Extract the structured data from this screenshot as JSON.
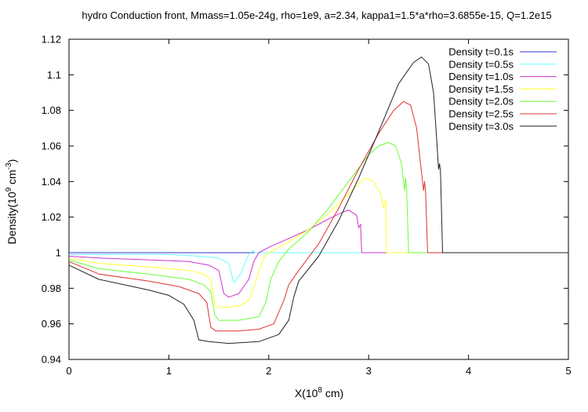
{
  "chart_data": {
    "type": "line",
    "title": "hydro Conduction front, Mmass=1.05e-24g, rho=1e9, a=2.34, kappa1=1.5*a*rho=3.6855e-15, Q=1.2e15",
    "xlabel_main": "X(10",
    "xlabel_sup": "8",
    "xlabel_tail": " cm)",
    "ylabel_main": "Density(10",
    "ylabel_sup1": "9",
    "ylabel_mid": " cm",
    "ylabel_sup2": "-3",
    "ylabel_tail": ")",
    "xlim": [
      0,
      5
    ],
    "ylim": [
      0.94,
      1.12
    ],
    "xticks": [
      0,
      1,
      2,
      3,
      4,
      5
    ],
    "xtick_labels": [
      "0",
      "1",
      "2",
      "3",
      "4",
      "5"
    ],
    "yticks": [
      0.94,
      0.96,
      0.98,
      1.0,
      1.02,
      1.04,
      1.06,
      1.08,
      1.1,
      1.12
    ],
    "ytick_labels": [
      "0.94",
      "0.96",
      "0.98",
      "1",
      "1.02",
      "1.04",
      "1.06",
      "1.08",
      "1.1",
      "1.12"
    ],
    "grid": false,
    "legend_position": "top-right",
    "series": [
      {
        "name": "Density t=0.1s",
        "color": "#3333cc",
        "points": [
          [
            0,
            1.0
          ],
          [
            5,
            1.0
          ]
        ]
      },
      {
        "name": "Density t=0.5s",
        "color": "#66ffff",
        "points": [
          [
            0,
            0.999
          ],
          [
            0.2,
            0.999
          ],
          [
            1.0,
            0.999
          ],
          [
            1.3,
            0.998
          ],
          [
            1.5,
            0.997
          ],
          [
            1.6,
            0.994
          ],
          [
            1.65,
            0.983
          ],
          [
            1.72,
            0.988
          ],
          [
            1.76,
            0.994
          ],
          [
            1.8,
            0.999
          ],
          [
            1.84,
            1.001
          ],
          [
            1.86,
            1.0
          ],
          [
            1.9,
            1.0
          ],
          [
            5,
            1.0
          ]
        ]
      },
      {
        "name": "Density t=1.0s",
        "color": "#cc33cc",
        "points": [
          [
            0,
            0.998
          ],
          [
            0.3,
            0.997
          ],
          [
            0.8,
            0.996
          ],
          [
            1.2,
            0.995
          ],
          [
            1.4,
            0.993
          ],
          [
            1.5,
            0.99
          ],
          [
            1.55,
            0.977
          ],
          [
            1.6,
            0.975
          ],
          [
            1.7,
            0.977
          ],
          [
            1.8,
            0.985
          ],
          [
            1.85,
            0.995
          ],
          [
            1.9,
            1.0
          ],
          [
            2.0,
            1.003
          ],
          [
            2.2,
            1.008
          ],
          [
            2.4,
            1.013
          ],
          [
            2.6,
            1.019
          ],
          [
            2.75,
            1.023
          ],
          [
            2.8,
            1.024
          ],
          [
            2.88,
            1.021
          ],
          [
            2.9,
            1.014
          ],
          [
            2.92,
            1.016
          ],
          [
            2.93,
            1.0
          ],
          [
            5,
            1.0
          ]
        ]
      },
      {
        "name": "Density t=1.5s",
        "color": "#ffff33",
        "points": [
          [
            0,
            0.997
          ],
          [
            0.3,
            0.994
          ],
          [
            0.8,
            0.992
          ],
          [
            1.2,
            0.99
          ],
          [
            1.35,
            0.988
          ],
          [
            1.42,
            0.985
          ],
          [
            1.46,
            0.971
          ],
          [
            1.5,
            0.969
          ],
          [
            1.7,
            0.97
          ],
          [
            1.8,
            0.973
          ],
          [
            1.85,
            0.98
          ],
          [
            1.9,
            0.99
          ],
          [
            1.95,
            0.997
          ],
          [
            2.0,
            1.0
          ],
          [
            2.2,
            1.006
          ],
          [
            2.4,
            1.013
          ],
          [
            2.6,
            1.022
          ],
          [
            2.8,
            1.033
          ],
          [
            2.9,
            1.039
          ],
          [
            2.97,
            1.042
          ],
          [
            3.05,
            1.04
          ],
          [
            3.12,
            1.033
          ],
          [
            3.15,
            1.025
          ],
          [
            3.17,
            1.03
          ],
          [
            3.18,
            1.0
          ],
          [
            5,
            1.0
          ]
        ]
      },
      {
        "name": "Density t=2.0s",
        "color": "#66ff33",
        "points": [
          [
            0,
            0.996
          ],
          [
            0.3,
            0.991
          ],
          [
            0.8,
            0.988
          ],
          [
            1.2,
            0.985
          ],
          [
            1.35,
            0.982
          ],
          [
            1.42,
            0.978
          ],
          [
            1.46,
            0.965
          ],
          [
            1.5,
            0.962
          ],
          [
            1.7,
            0.962
          ],
          [
            1.9,
            0.964
          ],
          [
            1.97,
            0.972
          ],
          [
            2.02,
            0.985
          ],
          [
            2.1,
            0.995
          ],
          [
            2.2,
            1.002
          ],
          [
            2.4,
            1.012
          ],
          [
            2.6,
            1.025
          ],
          [
            2.8,
            1.04
          ],
          [
            3.0,
            1.055
          ],
          [
            3.1,
            1.06
          ],
          [
            3.2,
            1.062
          ],
          [
            3.27,
            1.06
          ],
          [
            3.33,
            1.05
          ],
          [
            3.36,
            1.035
          ],
          [
            3.37,
            1.042
          ],
          [
            3.38,
            1.036
          ],
          [
            3.4,
            1.0
          ],
          [
            5,
            1.0
          ]
        ]
      },
      {
        "name": "Density t=2.5s",
        "color": "#dd3333",
        "points": [
          [
            0,
            0.995
          ],
          [
            0.3,
            0.988
          ],
          [
            0.8,
            0.984
          ],
          [
            1.1,
            0.981
          ],
          [
            1.3,
            0.977
          ],
          [
            1.38,
            0.972
          ],
          [
            1.42,
            0.958
          ],
          [
            1.47,
            0.956
          ],
          [
            1.7,
            0.956
          ],
          [
            1.9,
            0.957
          ],
          [
            2.05,
            0.96
          ],
          [
            2.15,
            0.973
          ],
          [
            2.2,
            0.982
          ],
          [
            2.3,
            0.99
          ],
          [
            2.5,
            1.005
          ],
          [
            2.7,
            1.025
          ],
          [
            2.9,
            1.047
          ],
          [
            3.1,
            1.067
          ],
          [
            3.25,
            1.08
          ],
          [
            3.35,
            1.085
          ],
          [
            3.42,
            1.083
          ],
          [
            3.48,
            1.07
          ],
          [
            3.52,
            1.05
          ],
          [
            3.55,
            1.035
          ],
          [
            3.56,
            1.04
          ],
          [
            3.57,
            1.035
          ],
          [
            3.59,
            1.0
          ],
          [
            5,
            1.0
          ]
        ]
      },
      {
        "name": "Density t=3.0s",
        "color": "#222222",
        "points": [
          [
            0,
            0.993
          ],
          [
            0.3,
            0.985
          ],
          [
            0.8,
            0.979
          ],
          [
            1.0,
            0.976
          ],
          [
            1.15,
            0.971
          ],
          [
            1.25,
            0.962
          ],
          [
            1.3,
            0.951
          ],
          [
            1.4,
            0.95
          ],
          [
            1.6,
            0.949
          ],
          [
            1.9,
            0.95
          ],
          [
            2.1,
            0.954
          ],
          [
            2.2,
            0.962
          ],
          [
            2.25,
            0.975
          ],
          [
            2.3,
            0.984
          ],
          [
            2.5,
            0.998
          ],
          [
            2.7,
            1.018
          ],
          [
            2.9,
            1.042
          ],
          [
            3.1,
            1.068
          ],
          [
            3.3,
            1.095
          ],
          [
            3.45,
            1.107
          ],
          [
            3.53,
            1.11
          ],
          [
            3.6,
            1.106
          ],
          [
            3.65,
            1.09
          ],
          [
            3.68,
            1.065
          ],
          [
            3.7,
            1.047
          ],
          [
            3.71,
            1.05
          ],
          [
            3.72,
            1.045
          ],
          [
            3.74,
            1.0
          ],
          [
            5,
            1.0
          ]
        ]
      }
    ]
  }
}
